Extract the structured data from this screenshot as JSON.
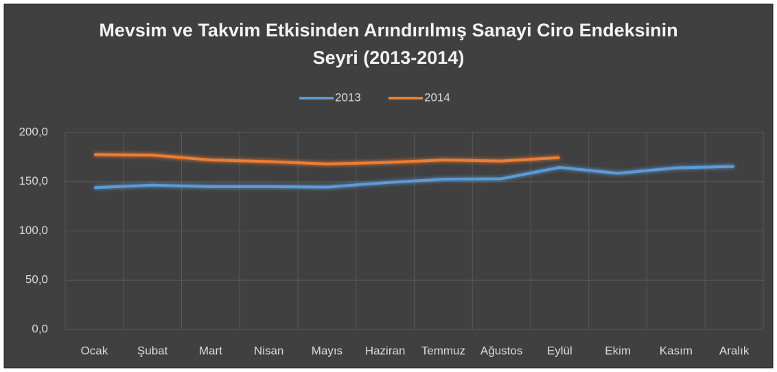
{
  "chart_data": {
    "type": "line",
    "title": "Mevsim ve Takvim Etkisinden Arındırılmış Sanayi Ciro Endeksinin Seyri (2013-2014)",
    "categories": [
      "Ocak",
      "Şubat",
      "Mart",
      "Nisan",
      "Mayıs",
      "Haziran",
      "Temmuz",
      "Ağustos",
      "Eylül",
      "Ekim",
      "Kasım",
      "Aralık"
    ],
    "series": [
      {
        "name": "2013",
        "color": "#5b9bd5",
        "values": [
          144,
          146.5,
          145,
          145,
          144.5,
          149,
          152.5,
          153,
          164.5,
          158.5,
          164,
          165.5
        ]
      },
      {
        "name": "2014",
        "color": "#ed7d31",
        "values": [
          177.5,
          177,
          172,
          170.5,
          168,
          169.5,
          172,
          171,
          174.5,
          null,
          null,
          null
        ]
      }
    ],
    "ylim": [
      0,
      200
    ],
    "yticks": [
      {
        "value": 0,
        "label": "0,0"
      },
      {
        "value": 50,
        "label": "50,0"
      },
      {
        "value": 100,
        "label": "100,0"
      },
      {
        "value": 150,
        "label": "150,0"
      },
      {
        "value": 200,
        "label": "200,0"
      }
    ],
    "grid": true,
    "legend": "top"
  }
}
